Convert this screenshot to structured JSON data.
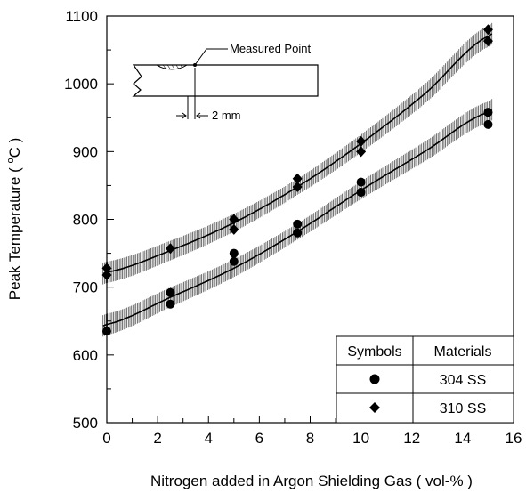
{
  "chart_data": {
    "type": "scatter",
    "xlabel": "Nitrogen added in Argon Shielding Gas ( vol-% )",
    "ylabel": "Peak Temperature ( °C )",
    "ylabel_parts": {
      "main": "Peak Temperature ( ",
      "degree": "o",
      "unit": "C )"
    },
    "xlim": [
      0,
      16
    ],
    "ylim": [
      500,
      1100
    ],
    "x_ticks": [
      0,
      2,
      4,
      6,
      8,
      10,
      12,
      14,
      16
    ],
    "y_ticks": [
      500,
      600,
      700,
      800,
      900,
      1000,
      1100
    ],
    "grid": false,
    "series": [
      {
        "name": "304 SS",
        "marker": "circle",
        "points": [
          [
            0,
            635
          ],
          [
            2.5,
            675
          ],
          [
            2.5,
            692
          ],
          [
            5,
            738
          ],
          [
            5,
            750
          ],
          [
            7.5,
            780
          ],
          [
            7.5,
            793
          ],
          [
            10,
            840
          ],
          [
            10,
            855
          ],
          [
            15,
            940
          ],
          [
            15,
            958
          ]
        ],
        "fit": [
          [
            0,
            645
          ],
          [
            2.5,
            685
          ],
          [
            5,
            728
          ],
          [
            7.5,
            782
          ],
          [
            10,
            843
          ],
          [
            12.5,
            900
          ],
          [
            15,
            958
          ]
        ]
      },
      {
        "name": "310 SS",
        "marker": "diamond",
        "points": [
          [
            0,
            718
          ],
          [
            0,
            728
          ],
          [
            2.5,
            757
          ],
          [
            5,
            785
          ],
          [
            5,
            800
          ],
          [
            7.5,
            848
          ],
          [
            7.5,
            860
          ],
          [
            10,
            900
          ],
          [
            10,
            915
          ],
          [
            15,
            1063
          ],
          [
            15,
            1080
          ]
        ],
        "fit": [
          [
            0,
            722
          ],
          [
            2.5,
            754
          ],
          [
            5,
            795
          ],
          [
            7.5,
            848
          ],
          [
            10,
            912
          ],
          [
            12.5,
            985
          ],
          [
            15,
            1070
          ]
        ]
      }
    ],
    "legend": {
      "position": "bottom-right",
      "header_symbols": "Symbols",
      "header_materials": "Materials"
    },
    "inset": {
      "measured_point_label": "Measured Point",
      "distance_label": "2 mm"
    }
  }
}
